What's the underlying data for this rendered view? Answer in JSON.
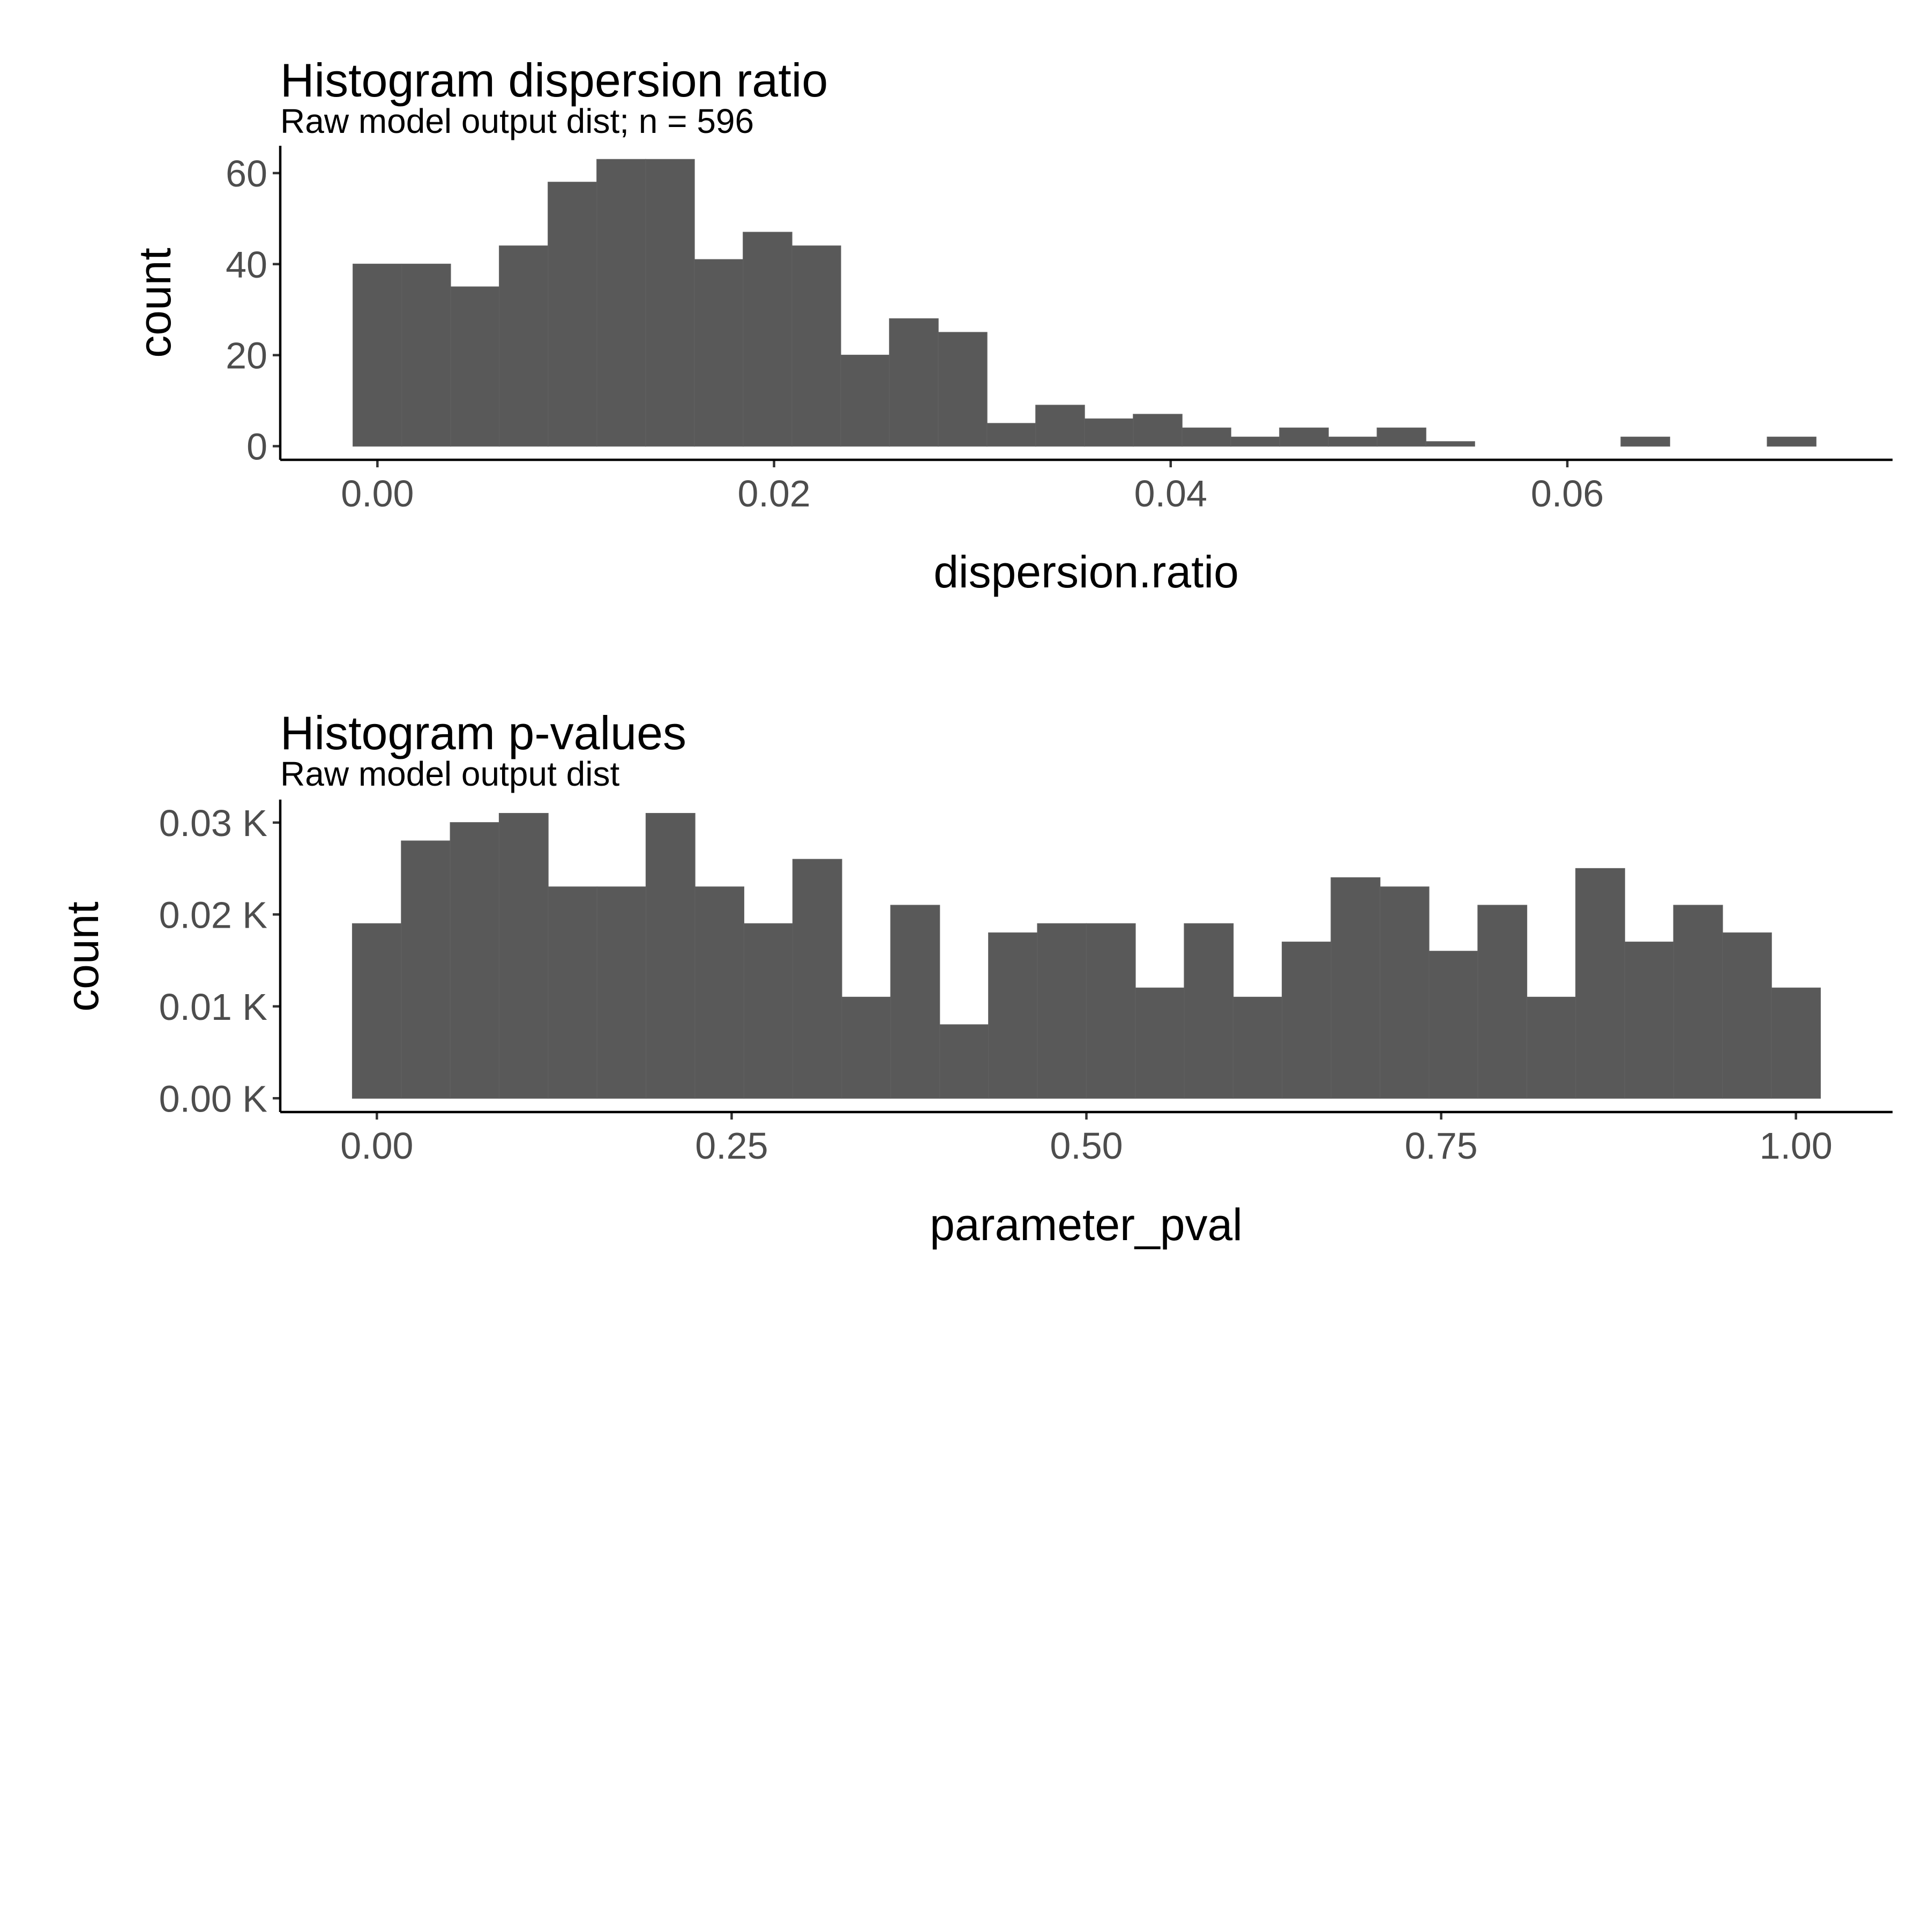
{
  "chart_data": [
    {
      "id": "top",
      "type": "bar",
      "title": "Histogram dispersion ratio",
      "subtitle": "Raw model output dist; n = 596",
      "xlabel": "dispersion.ratio",
      "ylabel": "count",
      "xlim": [
        -0.0049,
        0.0764
      ],
      "ylim": [
        -3,
        66
      ],
      "grid": false,
      "xticks": [
        {
          "value": 0.0,
          "label": "0.00"
        },
        {
          "value": 0.02,
          "label": "0.02"
        },
        {
          "value": 0.04,
          "label": "0.04"
        },
        {
          "value": 0.06,
          "label": "0.06"
        }
      ],
      "yticks": [
        {
          "value": 0,
          "label": "0"
        },
        {
          "value": 20,
          "label": "20"
        },
        {
          "value": 40,
          "label": "40"
        },
        {
          "value": 60,
          "label": "60"
        }
      ],
      "bins": {
        "start": -0.00123,
        "width": 0.002459,
        "counts": [
          40,
          40,
          35,
          44,
          58,
          63,
          63,
          41,
          47,
          44,
          20,
          28,
          25,
          5,
          9,
          6,
          7,
          4,
          2,
          4,
          2,
          4,
          1,
          0,
          0,
          0,
          2,
          0,
          0,
          2
        ]
      }
    },
    {
      "id": "bottom",
      "type": "bar",
      "title": "Histogram p-values",
      "subtitle": "Raw model output dist",
      "xlabel": "parameter_pval",
      "ylabel": "count",
      "xlim": [
        -0.0681,
        1.0681
      ],
      "ylim": [
        -0.0015,
        0.0325
      ],
      "grid": false,
      "xticks": [
        {
          "value": 0.0,
          "label": "0.00"
        },
        {
          "value": 0.25,
          "label": "0.25"
        },
        {
          "value": 0.5,
          "label": "0.50"
        },
        {
          "value": 0.75,
          "label": "0.75"
        },
        {
          "value": 1.0,
          "label": "1.00"
        }
      ],
      "yticks": [
        {
          "value": 0.0,
          "label": "0.00 K"
        },
        {
          "value": 0.01,
          "label": "0.01 K"
        },
        {
          "value": 0.02,
          "label": "0.02 K"
        },
        {
          "value": 0.03,
          "label": "0.03 K"
        }
      ],
      "bins": {
        "start": -0.01724,
        "width": 0.034483,
        "counts": [
          0.019,
          0.028,
          0.03,
          0.031,
          0.023,
          0.023,
          0.031,
          0.023,
          0.019,
          0.026,
          0.011,
          0.021,
          0.008,
          0.018,
          0.019,
          0.019,
          0.012,
          0.019,
          0.011,
          0.017,
          0.024,
          0.023,
          0.016,
          0.021,
          0.011,
          0.025,
          0.017,
          0.021,
          0.018,
          0.012
        ]
      }
    }
  ]
}
